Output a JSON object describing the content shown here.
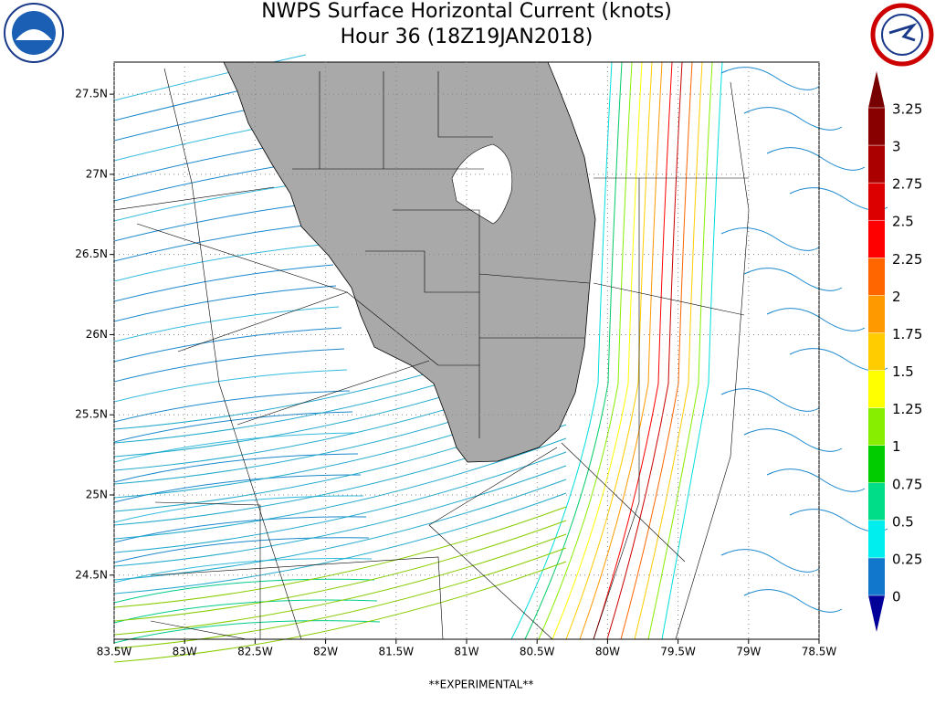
{
  "map": {
    "title": "NWPS Surface Horizontal Current (knots)",
    "subtitle": "Hour 36 (18Z19JAN2018)",
    "xlim": [
      -83.5,
      -78.5
    ],
    "ylim": [
      24.1,
      27.7
    ],
    "xticks": [
      {
        "value": -83.5,
        "label": "83.5W"
      },
      {
        "value": -83,
        "label": "83W"
      },
      {
        "value": -82.5,
        "label": "82.5W"
      },
      {
        "value": -82,
        "label": "82W"
      },
      {
        "value": -81.5,
        "label": "81.5W"
      },
      {
        "value": -81,
        "label": "81W"
      },
      {
        "value": -80.5,
        "label": "80.5W"
      },
      {
        "value": -80,
        "label": "80W"
      },
      {
        "value": -79.5,
        "label": "79.5W"
      },
      {
        "value": -79,
        "label": "79W"
      },
      {
        "value": -78.5,
        "label": "78.5W"
      }
    ],
    "yticks": [
      {
        "value": 24.5,
        "label": "24.5N"
      },
      {
        "value": 25,
        "label": "25N"
      },
      {
        "value": 25.5,
        "label": "25.5N"
      },
      {
        "value": 26,
        "label": "26N"
      },
      {
        "value": 26.5,
        "label": "26.5N"
      },
      {
        "value": 27,
        "label": "27N"
      },
      {
        "value": 27.5,
        "label": "27.5N"
      }
    ],
    "colorbar": {
      "ticks": [
        0,
        0.25,
        0.5,
        0.75,
        1,
        1.25,
        1.5,
        1.75,
        2,
        2.25,
        2.5,
        2.75,
        3,
        3.25
      ],
      "colors": [
        "#1177cc",
        "#00eeee",
        "#00dd88",
        "#00cc00",
        "#88ee00",
        "#ffff00",
        "#ffcc00",
        "#ff9900",
        "#ff6600",
        "#ff0000",
        "#dd0000",
        "#aa0000",
        "#880000"
      ],
      "under_color": "#000099",
      "over_color": "#770000"
    },
    "footer": "**EXPERIMENTAL**"
  }
}
